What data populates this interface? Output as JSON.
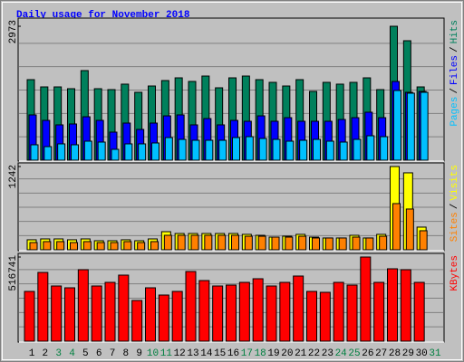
{
  "chart_data": {
    "type": "bar",
    "title": "Daily usage for November 2018",
    "categories": [
      "1",
      "2",
      "3",
      "4",
      "5",
      "6",
      "7",
      "8",
      "9",
      "10",
      "11",
      "12",
      "13",
      "14",
      "15",
      "16",
      "17",
      "18",
      "19",
      "20",
      "21",
      "22",
      "23",
      "24",
      "25",
      "26",
      "27",
      "28",
      "29",
      "30",
      "31"
    ],
    "category_colors": [
      "#000000",
      "#000000",
      "#008040",
      "#008040",
      "#000000",
      "#000000",
      "#000000",
      "#000000",
      "#000000",
      "#008040",
      "#008040",
      "#000000",
      "#000000",
      "#000000",
      "#000000",
      "#000000",
      "#008040",
      "#008040",
      "#000000",
      "#000000",
      "#000000",
      "#000000",
      "#000000",
      "#008040",
      "#008040",
      "#000000",
      "#000000",
      "#000000",
      "#000000",
      "#000000",
      "#008040"
    ],
    "label_separator": "/",
    "panels": [
      {
        "ylim": [
          0,
          3114
        ],
        "yticks": [
          2973
        ],
        "series": [
          {
            "name": "Hits",
            "color": "#00805c",
            "values": [
              1788,
              1627,
              1627,
              1587,
              1989,
              1587,
              1567,
              1688,
              1507,
              1647,
              1768,
              1828,
              1748,
              1868,
              1607,
              1828,
              1868,
              1788,
              1728,
              1647,
              1788,
              1527,
              1728,
              1688,
              1728,
              1828,
              1567,
              2973,
              2652,
              1627,
              null
            ]
          },
          {
            "name": "Files",
            "color": "#0000ff",
            "values": [
              1005,
              884,
              784,
              804,
              964,
              884,
              623,
              824,
              683,
              824,
              984,
              1005,
              784,
              924,
              784,
              884,
              864,
              984,
              864,
              944,
              864,
              864,
              864,
              904,
              944,
              1065,
              944,
              1748,
              1507,
              1527,
              null
            ]
          },
          {
            "name": "Pages",
            "color": "#00c0ff",
            "values": [
              342,
              301,
              362,
              342,
              422,
              402,
              241,
              362,
              362,
              382,
              502,
              462,
              442,
              442,
              442,
              502,
              522,
              482,
              462,
              422,
              442,
              462,
              422,
              402,
              462,
              542,
              522,
              1547,
              1487,
              1507,
              null
            ]
          }
        ]
      },
      {
        "ylim": [
          0,
          1269
        ],
        "yticks": [
          1242
        ],
        "series": [
          {
            "name": "Visits",
            "color": "#ffff00",
            "values": [
              149,
              162,
              162,
              149,
              162,
              135,
              135,
              149,
              135,
              162,
              270,
              243,
              243,
              243,
              243,
              243,
              230,
              216,
              189,
              203,
              230,
              189,
              176,
              176,
              216,
              176,
              230,
              1242,
              1148,
              338,
              null
            ]
          },
          {
            "name": "Sites",
            "color": "#ff8000",
            "values": [
              108,
              122,
              122,
              108,
              122,
              108,
              108,
              122,
              108,
              122,
              216,
              216,
              216,
              216,
              216,
              216,
              202,
              202,
              189,
              189,
              202,
              176,
              176,
              176,
              189,
              176,
              202,
              689,
              608,
              284,
              null
            ]
          }
        ]
      },
      {
        "ylim": [
          0,
          527854
        ],
        "yticks": [
          516741
        ],
        "series": [
          {
            "name": "KBytes",
            "color": "#ff0000",
            "values": [
              305580,
              422256,
              338916,
              327804,
              438924,
              338916,
              361140,
              405588,
              250020,
              327804,
              283356,
              305580,
              427812,
              372252,
              338916,
              344472,
              361140,
              383364,
              338916,
              361140,
              400032,
              305580,
              300024,
              361140,
              344472,
              516741,
              361140,
              444480,
              438924,
              361140,
              null
            ]
          }
        ]
      }
    ]
  }
}
